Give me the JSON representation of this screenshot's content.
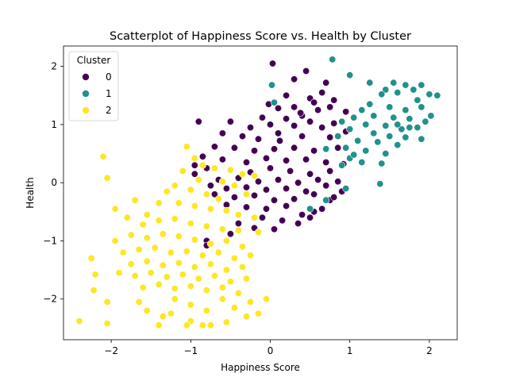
{
  "chart_data": {
    "type": "scatter",
    "title": "Scatterplot of Happiness Score vs. Health by Cluster",
    "xlabel": "Happiness Score",
    "ylabel": "Health",
    "xlim": [
      -2.6,
      2.35
    ],
    "ylim": [
      -2.7,
      2.35
    ],
    "x_ticks": [
      -2,
      -1,
      0,
      1,
      2
    ],
    "y_ticks": [
      -2,
      -1,
      0,
      1,
      2
    ],
    "grid": false,
    "legend": {
      "title": "Cluster",
      "placement": "top-left"
    },
    "series": [
      {
        "name": "0",
        "color": "#440154",
        "points": [
          [
            0.03,
            2.05
          ],
          [
            0.45,
            1.92
          ],
          [
            0.3,
            1.78
          ],
          [
            0.7,
            1.72
          ],
          [
            0.65,
            1.55
          ],
          [
            0.2,
            1.5
          ],
          [
            0.5,
            1.45
          ],
          [
            0.55,
            1.38
          ],
          [
            0.8,
            1.42
          ],
          [
            -0.02,
            1.35
          ],
          [
            0.1,
            1.28
          ],
          [
            0.3,
            1.3
          ],
          [
            0.6,
            1.25
          ],
          [
            0.75,
            1.3
          ],
          [
            0.95,
            1.22
          ],
          [
            0.4,
            1.15
          ],
          [
            0.2,
            1.1
          ],
          [
            0.5,
            1.05
          ],
          [
            -0.1,
            1.12
          ],
          [
            0.0,
            1.0
          ],
          [
            0.3,
            0.98
          ],
          [
            0.65,
            0.95
          ],
          [
            0.8,
            1.02
          ],
          [
            -0.25,
            0.95
          ],
          [
            -0.5,
            1.05
          ],
          [
            -0.9,
            1.05
          ],
          [
            -0.6,
            0.85
          ],
          [
            -0.35,
            0.8
          ],
          [
            -0.15,
            0.75
          ],
          [
            0.1,
            0.85
          ],
          [
            0.4,
            0.8
          ],
          [
            0.75,
            0.78
          ],
          [
            0.95,
            0.88
          ],
          [
            -0.7,
            0.62
          ],
          [
            -0.45,
            0.6
          ],
          [
            -0.2,
            0.55
          ],
          [
            0.05,
            0.58
          ],
          [
            0.3,
            0.6
          ],
          [
            0.55,
            0.55
          ],
          [
            0.85,
            0.6
          ],
          [
            -0.85,
            0.45
          ],
          [
            -0.6,
            0.4
          ],
          [
            -0.3,
            0.35
          ],
          [
            -0.05,
            0.42
          ],
          [
            0.2,
            0.38
          ],
          [
            0.45,
            0.4
          ],
          [
            0.7,
            0.35
          ],
          [
            0.92,
            0.32
          ],
          [
            -0.8,
            0.25
          ],
          [
            -0.5,
            0.22
          ],
          [
            -0.25,
            0.18
          ],
          [
            0.0,
            0.25
          ],
          [
            0.25,
            0.2
          ],
          [
            0.5,
            0.15
          ],
          [
            0.75,
            0.2
          ],
          [
            -0.65,
            0.05
          ],
          [
            -0.4,
            0.08
          ],
          [
            -0.15,
            0.02
          ],
          [
            0.1,
            0.05
          ],
          [
            0.35,
            0.0
          ],
          [
            0.6,
            0.05
          ],
          [
            0.85,
            0.02
          ],
          [
            -0.55,
            -0.1
          ],
          [
            -0.3,
            -0.08
          ],
          [
            -0.05,
            -0.12
          ],
          [
            0.2,
            -0.1
          ],
          [
            0.45,
            -0.15
          ],
          [
            0.7,
            -0.05
          ],
          [
            -0.7,
            -0.2
          ],
          [
            -0.45,
            -0.25
          ],
          [
            -0.2,
            -0.22
          ],
          [
            0.05,
            -0.3
          ],
          [
            0.3,
            -0.28
          ],
          [
            0.55,
            -0.2
          ],
          [
            0.9,
            -0.15
          ],
          [
            -0.55,
            -0.38
          ],
          [
            -0.3,
            -0.42
          ],
          [
            -0.05,
            -0.45
          ],
          [
            0.2,
            -0.4
          ],
          [
            0.4,
            -0.55
          ],
          [
            0.75,
            -0.3
          ],
          [
            0.65,
            -0.45
          ],
          [
            -0.1,
            -0.6
          ],
          [
            0.15,
            -0.65
          ],
          [
            0.35,
            -0.7
          ],
          [
            0.5,
            -0.6
          ],
          [
            -0.2,
            -0.78
          ],
          [
            0.05,
            -0.8
          ],
          [
            -0.4,
            -0.7
          ],
          [
            -0.15,
            -0.85
          ],
          [
            -0.8,
            -1.0
          ],
          [
            -0.8,
            -1.08
          ],
          [
            -0.5,
            -0.88
          ],
          [
            0.55,
            -0.5
          ],
          [
            0.8,
            -0.25
          ],
          [
            -0.95,
            0.3
          ],
          [
            -0.95,
            0.15
          ],
          [
            -0.75,
            -0.05
          ],
          [
            0.12,
            0.72
          ],
          [
            0.38,
            1.2
          ]
        ]
      },
      {
        "name": "1",
        "color": "#21918c",
        "points": [
          [
            0.78,
            2.12
          ],
          [
            1.0,
            1.85
          ],
          [
            1.25,
            1.72
          ],
          [
            1.55,
            1.72
          ],
          [
            1.7,
            1.68
          ],
          [
            1.9,
            1.68
          ],
          [
            2.1,
            1.5
          ],
          [
            1.45,
            1.6
          ],
          [
            1.6,
            1.55
          ],
          [
            1.8,
            1.6
          ],
          [
            2.0,
            1.52
          ],
          [
            1.4,
            1.52
          ],
          [
            0.02,
            1.68
          ],
          [
            0.05,
            1.38
          ],
          [
            1.25,
            1.35
          ],
          [
            1.5,
            1.3
          ],
          [
            1.7,
            1.25
          ],
          [
            1.9,
            1.3
          ],
          [
            2.02,
            1.15
          ],
          [
            1.15,
            1.25
          ],
          [
            1.3,
            1.15
          ],
          [
            1.55,
            1.12
          ],
          [
            1.75,
            1.1
          ],
          [
            1.95,
            1.05
          ],
          [
            1.05,
            1.12
          ],
          [
            0.9,
            1.05
          ],
          [
            1.2,
            1.0
          ],
          [
            1.45,
            0.98
          ],
          [
            1.65,
            0.92
          ],
          [
            1.85,
            0.95
          ],
          [
            1.0,
            0.92
          ],
          [
            1.3,
            0.85
          ],
          [
            1.5,
            0.8
          ],
          [
            1.7,
            0.78
          ],
          [
            1.9,
            0.75
          ],
          [
            0.85,
            0.8
          ],
          [
            1.1,
            0.72
          ],
          [
            1.35,
            0.7
          ],
          [
            1.6,
            0.65
          ],
          [
            0.95,
            0.6
          ],
          [
            1.2,
            0.55
          ],
          [
            1.45,
            0.5
          ],
          [
            1.0,
            0.42
          ],
          [
            1.15,
            0.35
          ],
          [
            0.9,
            0.3
          ],
          [
            0.7,
            0.58
          ],
          [
            0.95,
            -0.1
          ],
          [
            0.7,
            -0.3
          ],
          [
            1.4,
            0.33
          ],
          [
            1.38,
            -0.02
          ],
          [
            0.5,
            -0.45
          ],
          [
            1.85,
            1.42
          ],
          [
            1.75,
            0.95
          ],
          [
            1.6,
            1.0
          ],
          [
            1.05,
            0.48
          ]
        ]
      },
      {
        "name": "2",
        "color": "#fde725",
        "points": [
          [
            -2.1,
            0.45
          ],
          [
            -2.05,
            0.08
          ],
          [
            -1.95,
            -0.45
          ],
          [
            -1.8,
            -0.6
          ],
          [
            -1.7,
            -0.3
          ],
          [
            -1.55,
            -0.55
          ],
          [
            -1.4,
            -0.35
          ],
          [
            -1.3,
            -0.15
          ],
          [
            -1.05,
            0.62
          ],
          [
            -0.95,
            0.42
          ],
          [
            -1.1,
            0.2
          ],
          [
            -0.85,
            0.3
          ],
          [
            -0.7,
            0.25
          ],
          [
            -0.5,
            0.22
          ],
          [
            -0.35,
            0.15
          ],
          [
            -0.2,
            0.12
          ],
          [
            -0.9,
            0.05
          ],
          [
            -0.6,
            0.02
          ],
          [
            -0.45,
            -0.05
          ],
          [
            -0.3,
            -0.2
          ],
          [
            -1.2,
            -0.05
          ],
          [
            -1.0,
            -0.12
          ],
          [
            -0.8,
            -0.2
          ],
          [
            -0.65,
            -0.28
          ],
          [
            -1.15,
            -0.35
          ],
          [
            -0.95,
            -0.4
          ],
          [
            -0.75,
            -0.45
          ],
          [
            -0.55,
            -0.48
          ],
          [
            -0.4,
            -0.55
          ],
          [
            -0.2,
            -0.6
          ],
          [
            -1.6,
            -0.72
          ],
          [
            -1.4,
            -0.65
          ],
          [
            -1.2,
            -0.62
          ],
          [
            -1.0,
            -0.7
          ],
          [
            -0.8,
            -0.75
          ],
          [
            -0.6,
            -0.8
          ],
          [
            -0.4,
            -0.82
          ],
          [
            -0.15,
            -0.85
          ],
          [
            -1.95,
            -1.0
          ],
          [
            -1.75,
            -0.9
          ],
          [
            -1.55,
            -0.95
          ],
          [
            -1.35,
            -0.88
          ],
          [
            -1.15,
            -0.92
          ],
          [
            -0.95,
            -0.98
          ],
          [
            -0.75,
            -1.05
          ],
          [
            -0.55,
            -1.0
          ],
          [
            -0.35,
            -1.1
          ],
          [
            -1.85,
            -1.2
          ],
          [
            -1.65,
            -1.15
          ],
          [
            -1.45,
            -1.12
          ],
          [
            -1.25,
            -1.2
          ],
          [
            -1.05,
            -1.18
          ],
          [
            -0.85,
            -1.25
          ],
          [
            -0.65,
            -1.2
          ],
          [
            -0.45,
            -1.3
          ],
          [
            -0.25,
            -1.25
          ],
          [
            -1.75,
            -1.4
          ],
          [
            -1.55,
            -1.35
          ],
          [
            -1.35,
            -1.42
          ],
          [
            -1.15,
            -1.38
          ],
          [
            -0.95,
            -1.45
          ],
          [
            -0.75,
            -1.4
          ],
          [
            -0.55,
            -1.5
          ],
          [
            -0.35,
            -1.45
          ],
          [
            -1.9,
            -1.55
          ],
          [
            -1.7,
            -1.6
          ],
          [
            -1.5,
            -1.55
          ],
          [
            -1.3,
            -1.62
          ],
          [
            -1.1,
            -1.58
          ],
          [
            -0.9,
            -1.65
          ],
          [
            -0.7,
            -1.6
          ],
          [
            -0.5,
            -1.7
          ],
          [
            -0.3,
            -1.65
          ],
          [
            -1.6,
            -1.8
          ],
          [
            -1.4,
            -1.75
          ],
          [
            -1.2,
            -1.82
          ],
          [
            -1.0,
            -1.78
          ],
          [
            -0.8,
            -1.85
          ],
          [
            -0.6,
            -1.8
          ],
          [
            -0.4,
            -1.9
          ],
          [
            -2.25,
            -1.3
          ],
          [
            -2.2,
            -1.58
          ],
          [
            -2.22,
            -1.85
          ],
          [
            -2.05,
            -2.05
          ],
          [
            -1.55,
            -2.2
          ],
          [
            -1.35,
            -2.3
          ],
          [
            -1.2,
            -2.0
          ],
          [
            -1.0,
            -2.1
          ],
          [
            -0.8,
            -2.2
          ],
          [
            -0.6,
            -2.0
          ],
          [
            -0.45,
            -2.15
          ],
          [
            -0.25,
            -2.05
          ],
          [
            -0.05,
            -2.0
          ],
          [
            -0.3,
            -2.3
          ],
          [
            -0.55,
            -2.4
          ],
          [
            -0.75,
            -2.45
          ],
          [
            -1.0,
            -2.38
          ],
          [
            -1.4,
            -2.45
          ],
          [
            -2.05,
            -2.42
          ],
          [
            -2.4,
            -2.38
          ],
          [
            -0.15,
            -2.25
          ],
          [
            -0.85,
            -2.45
          ],
          [
            -1.05,
            -2.45
          ],
          [
            -1.65,
            -2.05
          ],
          [
            -1.25,
            -2.25
          ]
        ]
      }
    ]
  }
}
